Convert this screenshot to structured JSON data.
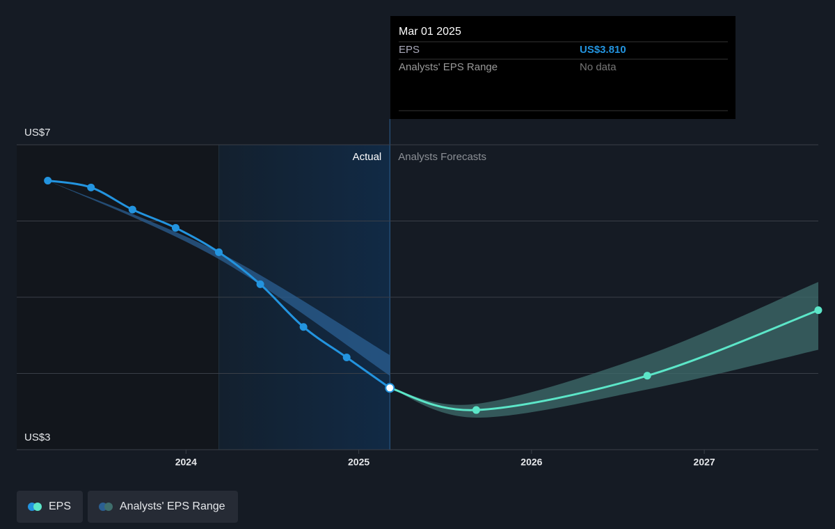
{
  "chart_data": {
    "type": "line",
    "xlim": [
      2023.02,
      2027.66
    ],
    "xticks": [
      2024,
      2025,
      2026,
      2027
    ],
    "ylim": [
      3,
      7
    ],
    "yticks": [
      {
        "value": 3,
        "label": "US$3"
      },
      4,
      5,
      6,
      {
        "value": 7,
        "label": "US$7"
      }
    ],
    "grid": true,
    "annotations": {
      "actual": "Actual",
      "forecast": "Analysts Forecasts"
    },
    "series": [
      {
        "name": "EPS",
        "color": "#2394df",
        "x": [
          2023.2,
          2023.45,
          2023.69,
          2023.94,
          2024.19,
          2024.43,
          2024.68,
          2024.93,
          2025.18
        ],
        "values": [
          6.53,
          6.44,
          6.15,
          5.91,
          5.59,
          5.17,
          4.61,
          4.21,
          3.81
        ]
      },
      {
        "color": "#5ce6c8",
        "x": [
          2025.18,
          2025.68,
          2026.67,
          2027.66
        ],
        "values": [
          3.81,
          3.52,
          3.97,
          4.83
        ]
      }
    ],
    "range": {
      "name": "Analysts' EPS Range",
      "pieces": [
        {
          "color": "#2b5f92",
          "x": [
            2023.2,
            2024.19,
            2025.18
          ],
          "lower": [
            6.53,
            5.5,
            3.97
          ],
          "upper": [
            6.53,
            5.59,
            4.24
          ]
        },
        {
          "color": "#3f6e6c",
          "x": [
            2025.18,
            2025.68,
            2026.67,
            2027.66
          ],
          "lower": [
            3.81,
            3.42,
            3.79,
            4.31
          ],
          "upper": [
            3.81,
            3.6,
            4.24,
            5.2
          ]
        }
      ]
    },
    "tooltip": {
      "date": "Mar 01 2025",
      "rows": [
        {
          "label": "EPS",
          "value": "US$3.810"
        },
        {
          "label": "Analysts' EPS Range",
          "value": "No data"
        }
      ]
    }
  }
}
